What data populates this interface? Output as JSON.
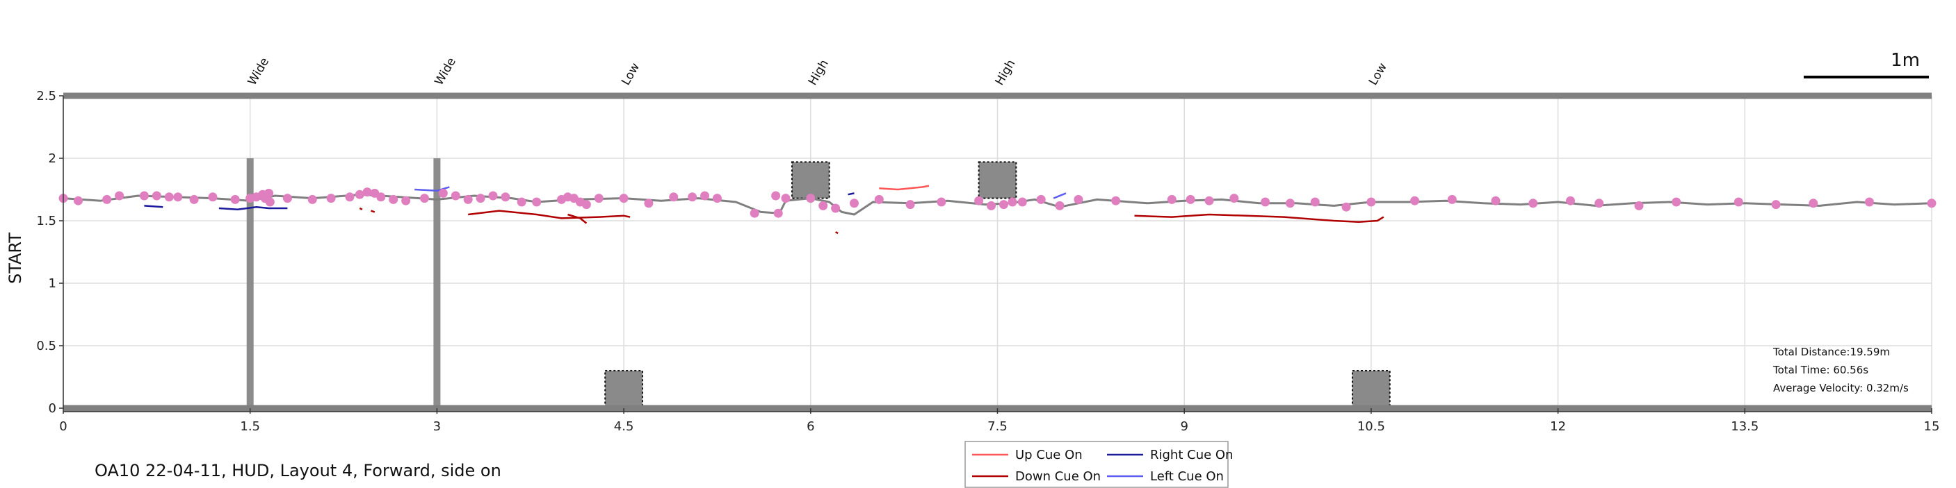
{
  "chart_data": {
    "type": "line",
    "xlim": [
      0,
      15
    ],
    "ylim": [
      0,
      2.5
    ],
    "x_ticks": [
      "0",
      "1.5",
      "3",
      "4.5",
      "6",
      "7.5",
      "9",
      "10.5",
      "12",
      "13.5",
      "15"
    ],
    "y_ticks": [
      "0",
      "0.5",
      "1",
      "1.5",
      "2",
      "2.5"
    ],
    "ylabel": "START",
    "grid": true,
    "scale_bar": "1m",
    "obstacle_labels": [
      {
        "x": 1.5,
        "label": "Wide"
      },
      {
        "x": 3.0,
        "label": "Wide"
      },
      {
        "x": 4.5,
        "label": "Low"
      },
      {
        "x": 6.0,
        "label": "High"
      },
      {
        "x": 7.5,
        "label": "High"
      },
      {
        "x": 10.5,
        "label": "Low"
      }
    ],
    "obstacles": [
      {
        "type": "wide",
        "x": 1.5,
        "y0": 0,
        "y1": 2.0
      },
      {
        "type": "wide",
        "x": 3.0,
        "y0": 0,
        "y1": 2.0
      },
      {
        "type": "low",
        "x0": 4.35,
        "x1": 4.65,
        "y0": 0,
        "y1": 0.3
      },
      {
        "type": "high",
        "x0": 5.85,
        "x1": 6.15,
        "y0": 1.68,
        "y1": 1.97
      },
      {
        "type": "high",
        "x0": 7.35,
        "x1": 7.65,
        "y0": 1.68,
        "y1": 1.97
      },
      {
        "type": "low",
        "x0": 10.35,
        "x1": 10.65,
        "y0": 0,
        "y1": 0.3
      }
    ],
    "series": [
      {
        "name": "path",
        "color": "#7f7f7f",
        "points": [
          [
            0,
            1.68
          ],
          [
            0.3,
            1.66
          ],
          [
            0.6,
            1.7
          ],
          [
            0.9,
            1.69
          ],
          [
            1.2,
            1.68
          ],
          [
            1.5,
            1.66
          ],
          [
            1.7,
            1.7
          ],
          [
            2.0,
            1.68
          ],
          [
            2.4,
            1.71
          ],
          [
            2.7,
            1.69
          ],
          [
            3.0,
            1.67
          ],
          [
            3.3,
            1.7
          ],
          [
            3.6,
            1.68
          ],
          [
            3.8,
            1.65
          ],
          [
            4.1,
            1.67
          ],
          [
            4.5,
            1.68
          ],
          [
            4.8,
            1.66
          ],
          [
            5.1,
            1.68
          ],
          [
            5.4,
            1.65
          ],
          [
            5.6,
            1.57
          ],
          [
            5.75,
            1.56
          ],
          [
            5.8,
            1.66
          ],
          [
            6.0,
            1.68
          ],
          [
            6.15,
            1.65
          ],
          [
            6.25,
            1.57
          ],
          [
            6.35,
            1.55
          ],
          [
            6.5,
            1.65
          ],
          [
            6.8,
            1.64
          ],
          [
            7.1,
            1.66
          ],
          [
            7.4,
            1.63
          ],
          [
            7.6,
            1.64
          ],
          [
            7.8,
            1.67
          ],
          [
            8.0,
            1.61
          ],
          [
            8.3,
            1.67
          ],
          [
            8.7,
            1.64
          ],
          [
            9.0,
            1.66
          ],
          [
            9.3,
            1.67
          ],
          [
            9.6,
            1.64
          ],
          [
            9.9,
            1.64
          ],
          [
            10.2,
            1.62
          ],
          [
            10.5,
            1.65
          ],
          [
            10.8,
            1.65
          ],
          [
            11.1,
            1.66
          ],
          [
            11.4,
            1.64
          ],
          [
            11.7,
            1.63
          ],
          [
            12.0,
            1.65
          ],
          [
            12.3,
            1.62
          ],
          [
            12.6,
            1.64
          ],
          [
            12.9,
            1.65
          ],
          [
            13.2,
            1.63
          ],
          [
            13.5,
            1.64
          ],
          [
            13.8,
            1.63
          ],
          [
            14.1,
            1.62
          ],
          [
            14.4,
            1.65
          ],
          [
            14.7,
            1.63
          ],
          [
            15.0,
            1.64
          ]
        ]
      },
      {
        "name": "Up Cue On",
        "color": "#ff5555",
        "segments": [
          [
            [
              6.55,
              1.76
            ],
            [
              6.7,
              1.75
            ],
            [
              6.9,
              1.77
            ],
            [
              6.95,
              1.78
            ]
          ]
        ]
      },
      {
        "name": "Down Cue On",
        "color": "#b00000",
        "segments": [
          [
            [
              3.25,
              1.55
            ],
            [
              3.5,
              1.58
            ],
            [
              3.8,
              1.55
            ],
            [
              4.0,
              1.52
            ],
            [
              4.3,
              1.53
            ],
            [
              4.5,
              1.54
            ],
            [
              4.55,
              1.53
            ]
          ],
          [
            [
              4.05,
              1.55
            ],
            [
              4.15,
              1.52
            ],
            [
              4.2,
              1.48
            ]
          ],
          [
            [
              8.6,
              1.54
            ],
            [
              8.9,
              1.53
            ],
            [
              9.2,
              1.55
            ],
            [
              9.5,
              1.54
            ],
            [
              9.8,
              1.53
            ],
            [
              10.2,
              1.5
            ],
            [
              10.4,
              1.49
            ],
            [
              10.55,
              1.5
            ],
            [
              10.6,
              1.53
            ]
          ],
          [
            [
              2.38,
              1.6
            ],
            [
              2.4,
              1.59
            ]
          ],
          [
            [
              2.47,
              1.58
            ],
            [
              2.5,
              1.57
            ]
          ],
          [
            [
              6.2,
              1.41
            ],
            [
              6.22,
              1.4
            ]
          ]
        ]
      },
      {
        "name": "Right Cue On",
        "color": "#1a1a9a",
        "segments": [
          [
            [
              0.65,
              1.62
            ],
            [
              0.8,
              1.61
            ]
          ],
          [
            [
              1.25,
              1.6
            ],
            [
              1.4,
              1.59
            ],
            [
              1.55,
              1.61
            ],
            [
              1.65,
              1.6
            ],
            [
              1.8,
              1.6
            ]
          ],
          [
            [
              6.3,
              1.71
            ],
            [
              6.35,
              1.72
            ]
          ]
        ]
      },
      {
        "name": "Left Cue On",
        "color": "#5c5cf0",
        "segments": [
          [
            [
              2.82,
              1.75
            ],
            [
              3.0,
              1.74
            ],
            [
              3.1,
              1.77
            ]
          ],
          [
            [
              7.95,
              1.68
            ],
            [
              8.05,
              1.72
            ]
          ]
        ]
      },
      {
        "name": "markers",
        "color": "#e07fc0",
        "points": [
          [
            0,
            1.68
          ],
          [
            0.12,
            1.66
          ],
          [
            0.35,
            1.67
          ],
          [
            0.45,
            1.7
          ],
          [
            0.65,
            1.7
          ],
          [
            0.75,
            1.7
          ],
          [
            0.85,
            1.69
          ],
          [
            0.92,
            1.69
          ],
          [
            1.05,
            1.67
          ],
          [
            1.2,
            1.69
          ],
          [
            1.38,
            1.67
          ],
          [
            1.5,
            1.68
          ],
          [
            1.55,
            1.69
          ],
          [
            1.6,
            1.71
          ],
          [
            1.62,
            1.68
          ],
          [
            1.65,
            1.72
          ],
          [
            1.66,
            1.65
          ],
          [
            1.8,
            1.68
          ],
          [
            2.0,
            1.67
          ],
          [
            2.15,
            1.68
          ],
          [
            2.3,
            1.69
          ],
          [
            2.38,
            1.71
          ],
          [
            2.44,
            1.73
          ],
          [
            2.5,
            1.72
          ],
          [
            2.55,
            1.69
          ],
          [
            2.65,
            1.67
          ],
          [
            2.75,
            1.66
          ],
          [
            2.9,
            1.68
          ],
          [
            3.05,
            1.72
          ],
          [
            3.15,
            1.7
          ],
          [
            3.25,
            1.67
          ],
          [
            3.35,
            1.68
          ],
          [
            3.45,
            1.7
          ],
          [
            3.55,
            1.69
          ],
          [
            3.68,
            1.65
          ],
          [
            3.8,
            1.65
          ],
          [
            4.0,
            1.67
          ],
          [
            4.05,
            1.69
          ],
          [
            4.1,
            1.68
          ],
          [
            4.15,
            1.65
          ],
          [
            4.2,
            1.63
          ],
          [
            4.3,
            1.68
          ],
          [
            4.5,
            1.68
          ],
          [
            4.7,
            1.64
          ],
          [
            4.9,
            1.69
          ],
          [
            5.05,
            1.69
          ],
          [
            5.15,
            1.7
          ],
          [
            5.25,
            1.68
          ],
          [
            5.55,
            1.56
          ],
          [
            5.72,
            1.7
          ],
          [
            5.74,
            1.56
          ],
          [
            5.8,
            1.68
          ],
          [
            6.0,
            1.68
          ],
          [
            6.1,
            1.62
          ],
          [
            6.2,
            1.6
          ],
          [
            6.35,
            1.64
          ],
          [
            6.55,
            1.67
          ],
          [
            6.8,
            1.63
          ],
          [
            7.05,
            1.65
          ],
          [
            7.35,
            1.66
          ],
          [
            7.45,
            1.62
          ],
          [
            7.55,
            1.63
          ],
          [
            7.62,
            1.65
          ],
          [
            7.7,
            1.65
          ],
          [
            7.85,
            1.67
          ],
          [
            8.0,
            1.62
          ],
          [
            8.15,
            1.67
          ],
          [
            8.45,
            1.66
          ],
          [
            8.9,
            1.67
          ],
          [
            9.05,
            1.67
          ],
          [
            9.2,
            1.66
          ],
          [
            9.4,
            1.68
          ],
          [
            9.65,
            1.65
          ],
          [
            9.85,
            1.64
          ],
          [
            10.05,
            1.65
          ],
          [
            10.3,
            1.61
          ],
          [
            10.5,
            1.65
          ],
          [
            10.85,
            1.66
          ],
          [
            11.15,
            1.67
          ],
          [
            11.5,
            1.66
          ],
          [
            11.8,
            1.64
          ],
          [
            12.1,
            1.66
          ],
          [
            12.33,
            1.64
          ],
          [
            12.65,
            1.62
          ],
          [
            12.95,
            1.65
          ],
          [
            13.45,
            1.65
          ],
          [
            13.75,
            1.63
          ],
          [
            14.05,
            1.64
          ],
          [
            14.5,
            1.65
          ],
          [
            15.0,
            1.64
          ]
        ]
      }
    ],
    "legend": [
      {
        "label": "Up Cue On",
        "color": "#ff5555"
      },
      {
        "label": "Right Cue On",
        "color": "#1a1a9a"
      },
      {
        "label": "Down Cue On",
        "color": "#b00000"
      },
      {
        "label": "Left Cue On",
        "color": "#5c5cf0"
      }
    ],
    "legend_position": "bottom-center",
    "stats": [
      "Total Distance:19.59m",
      "Total Time: 60.56s",
      "Average Velocity: 0.32m/s"
    ],
    "caption": "OA10 22-04-11, HUD, Layout 4, Forward, side on"
  }
}
